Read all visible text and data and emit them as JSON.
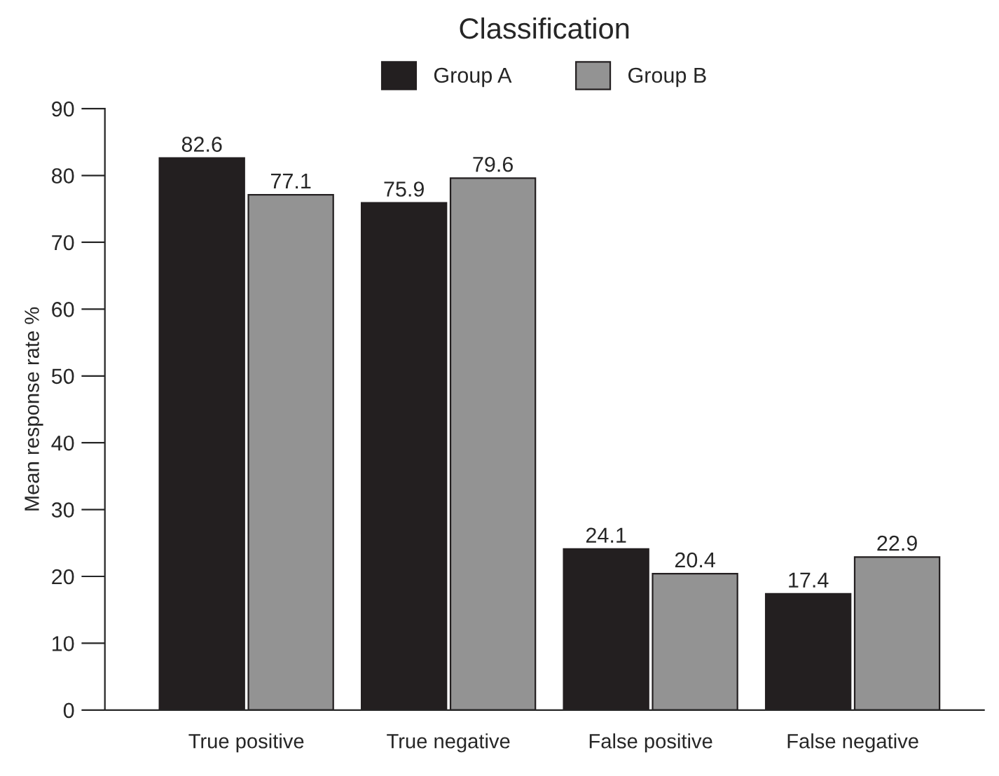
{
  "chart_data": {
    "type": "bar",
    "title": "Classification",
    "ylabel": "Mean response rate %",
    "categories": [
      "True positive",
      "True negative",
      "False positive",
      "False negative"
    ],
    "series": [
      {
        "name": "Group A",
        "color": "#231f20",
        "values": [
          82.6,
          75.9,
          24.1,
          17.4
        ]
      },
      {
        "name": "Group B",
        "color": "#939393",
        "values": [
          77.1,
          79.6,
          20.4,
          22.9
        ]
      }
    ],
    "ylim": [
      0,
      90
    ],
    "yticks": [
      0,
      10,
      20,
      30,
      40,
      50,
      60,
      70,
      80,
      90
    ],
    "data_labels": true,
    "legend": "top",
    "grid": false
  }
}
